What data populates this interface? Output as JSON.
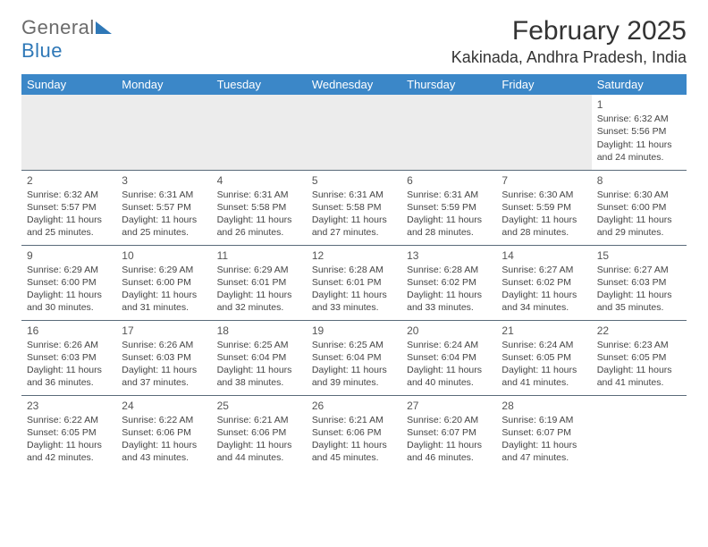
{
  "logo": {
    "word1": "General",
    "word2": "Blue"
  },
  "title": "February 2025",
  "location": "Kakinada, Andhra Pradesh, India",
  "colors": {
    "header_bg": "#3b87c8",
    "header_text": "#ffffff",
    "rule": "#5a6b7a",
    "logo_gray": "#6b6b6b",
    "logo_blue": "#2f78b7",
    "body_text": "#444444",
    "empty_row_bg": "#ececec"
  },
  "typography": {
    "title_fontsize": 30,
    "location_fontsize": 18,
    "dayheader_fontsize": 13,
    "cell_fontsize": 10.5
  },
  "weekdays": [
    "Sunday",
    "Monday",
    "Tuesday",
    "Wednesday",
    "Thursday",
    "Friday",
    "Saturday"
  ],
  "labels": {
    "sunrise": "Sunrise:",
    "sunset": "Sunset:",
    "daylight": "Daylight:"
  },
  "weeks": [
    [
      null,
      null,
      null,
      null,
      null,
      null,
      {
        "day": "1",
        "sunrise": "6:32 AM",
        "sunset": "5:56 PM",
        "daylight": "11 hours and 24 minutes."
      }
    ],
    [
      {
        "day": "2",
        "sunrise": "6:32 AM",
        "sunset": "5:57 PM",
        "daylight": "11 hours and 25 minutes."
      },
      {
        "day": "3",
        "sunrise": "6:31 AM",
        "sunset": "5:57 PM",
        "daylight": "11 hours and 25 minutes."
      },
      {
        "day": "4",
        "sunrise": "6:31 AM",
        "sunset": "5:58 PM",
        "daylight": "11 hours and 26 minutes."
      },
      {
        "day": "5",
        "sunrise": "6:31 AM",
        "sunset": "5:58 PM",
        "daylight": "11 hours and 27 minutes."
      },
      {
        "day": "6",
        "sunrise": "6:31 AM",
        "sunset": "5:59 PM",
        "daylight": "11 hours and 28 minutes."
      },
      {
        "day": "7",
        "sunrise": "6:30 AM",
        "sunset": "5:59 PM",
        "daylight": "11 hours and 28 minutes."
      },
      {
        "day": "8",
        "sunrise": "6:30 AM",
        "sunset": "6:00 PM",
        "daylight": "11 hours and 29 minutes."
      }
    ],
    [
      {
        "day": "9",
        "sunrise": "6:29 AM",
        "sunset": "6:00 PM",
        "daylight": "11 hours and 30 minutes."
      },
      {
        "day": "10",
        "sunrise": "6:29 AM",
        "sunset": "6:00 PM",
        "daylight": "11 hours and 31 minutes."
      },
      {
        "day": "11",
        "sunrise": "6:29 AM",
        "sunset": "6:01 PM",
        "daylight": "11 hours and 32 minutes."
      },
      {
        "day": "12",
        "sunrise": "6:28 AM",
        "sunset": "6:01 PM",
        "daylight": "11 hours and 33 minutes."
      },
      {
        "day": "13",
        "sunrise": "6:28 AM",
        "sunset": "6:02 PM",
        "daylight": "11 hours and 33 minutes."
      },
      {
        "day": "14",
        "sunrise": "6:27 AM",
        "sunset": "6:02 PM",
        "daylight": "11 hours and 34 minutes."
      },
      {
        "day": "15",
        "sunrise": "6:27 AM",
        "sunset": "6:03 PM",
        "daylight": "11 hours and 35 minutes."
      }
    ],
    [
      {
        "day": "16",
        "sunrise": "6:26 AM",
        "sunset": "6:03 PM",
        "daylight": "11 hours and 36 minutes."
      },
      {
        "day": "17",
        "sunrise": "6:26 AM",
        "sunset": "6:03 PM",
        "daylight": "11 hours and 37 minutes."
      },
      {
        "day": "18",
        "sunrise": "6:25 AM",
        "sunset": "6:04 PM",
        "daylight": "11 hours and 38 minutes."
      },
      {
        "day": "19",
        "sunrise": "6:25 AM",
        "sunset": "6:04 PM",
        "daylight": "11 hours and 39 minutes."
      },
      {
        "day": "20",
        "sunrise": "6:24 AM",
        "sunset": "6:04 PM",
        "daylight": "11 hours and 40 minutes."
      },
      {
        "day": "21",
        "sunrise": "6:24 AM",
        "sunset": "6:05 PM",
        "daylight": "11 hours and 41 minutes."
      },
      {
        "day": "22",
        "sunrise": "6:23 AM",
        "sunset": "6:05 PM",
        "daylight": "11 hours and 41 minutes."
      }
    ],
    [
      {
        "day": "23",
        "sunrise": "6:22 AM",
        "sunset": "6:05 PM",
        "daylight": "11 hours and 42 minutes."
      },
      {
        "day": "24",
        "sunrise": "6:22 AM",
        "sunset": "6:06 PM",
        "daylight": "11 hours and 43 minutes."
      },
      {
        "day": "25",
        "sunrise": "6:21 AM",
        "sunset": "6:06 PM",
        "daylight": "11 hours and 44 minutes."
      },
      {
        "day": "26",
        "sunrise": "6:21 AM",
        "sunset": "6:06 PM",
        "daylight": "11 hours and 45 minutes."
      },
      {
        "day": "27",
        "sunrise": "6:20 AM",
        "sunset": "6:07 PM",
        "daylight": "11 hours and 46 minutes."
      },
      {
        "day": "28",
        "sunrise": "6:19 AM",
        "sunset": "6:07 PM",
        "daylight": "11 hours and 47 minutes."
      },
      null
    ]
  ]
}
